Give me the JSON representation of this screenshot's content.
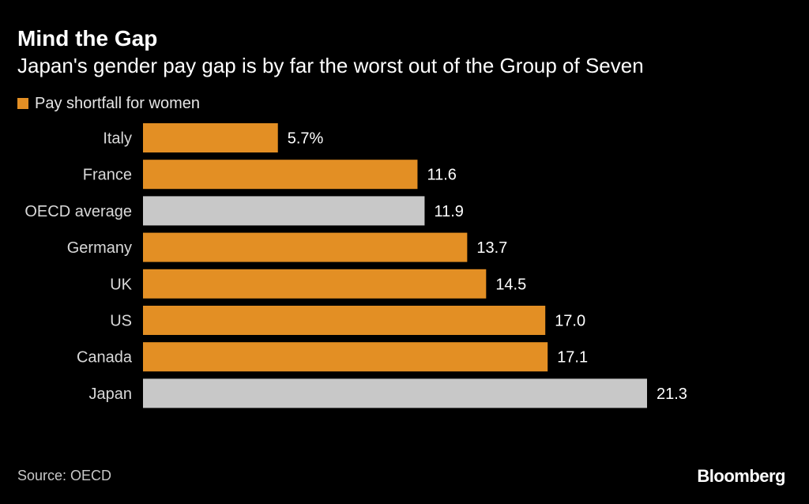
{
  "chart_data": {
    "type": "bar",
    "orientation": "horizontal",
    "title": "Mind the Gap",
    "subtitle": "Japan's gender pay gap is by far the worst out of the Group of Seven",
    "legend": [
      {
        "label": "Pay shortfall for women",
        "color": "#e38f24"
      }
    ],
    "categories": [
      "Italy",
      "France",
      "OECD average",
      "Germany",
      "UK",
      "US",
      "Canada",
      "Japan"
    ],
    "values": [
      5.7,
      11.6,
      11.9,
      13.7,
      14.5,
      17.0,
      17.1,
      21.3
    ],
    "value_labels": [
      "5.7%",
      "11.6",
      "11.9",
      "13.7",
      "14.5",
      "17.0",
      "17.1",
      "21.3"
    ],
    "bar_colors": [
      "#e38f24",
      "#e38f24",
      "#c8c8c8",
      "#e38f24",
      "#e38f24",
      "#e38f24",
      "#e38f24",
      "#c8c8c8"
    ],
    "xlim": [
      0,
      21.3
    ],
    "xlabel": "",
    "ylabel": "",
    "grid": false
  },
  "footer": {
    "source": "Source: OECD",
    "brand": "Bloomberg"
  },
  "colors": {
    "background": "#000000",
    "accent": "#e38f24",
    "highlight": "#c8c8c8"
  }
}
